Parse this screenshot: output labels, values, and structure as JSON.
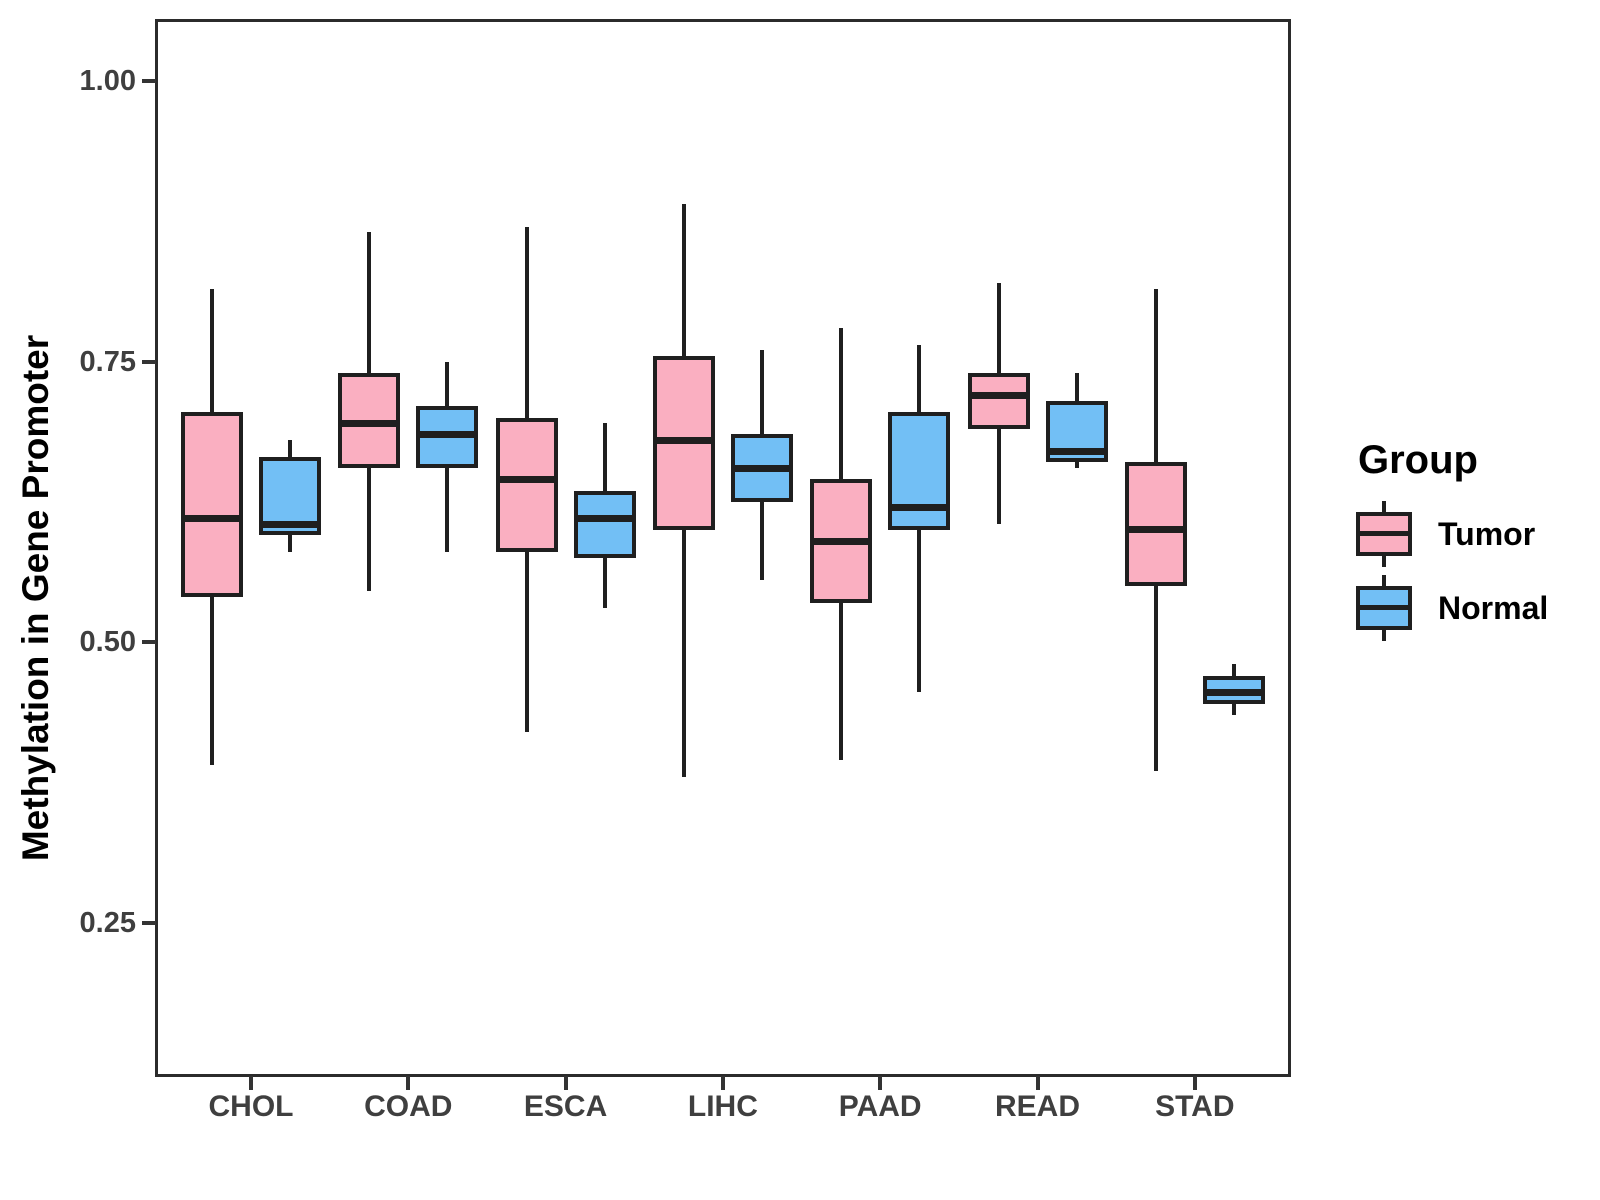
{
  "figure": {
    "background": "#ffffff"
  },
  "axes": {
    "y_title": "Methylation in Gene Promoter",
    "y_ticks": [
      {
        "value": 1.0,
        "label": "1.00"
      },
      {
        "value": 0.75,
        "label": "0.75"
      },
      {
        "value": 0.5,
        "label": "0.50"
      },
      {
        "value": 0.25,
        "label": "0.25"
      }
    ],
    "x_categories": [
      "CHOL",
      "COAD",
      "ESCA",
      "LIHC",
      "PAAD",
      "READ",
      "STAD"
    ]
  },
  "legend": {
    "title": "Group",
    "items": [
      {
        "label": "Tumor",
        "color": "#FAAFC1"
      },
      {
        "label": "Normal",
        "color": "#72BFF5"
      }
    ]
  },
  "chart_data": {
    "type": "boxplot",
    "title": "",
    "xlabel": "",
    "ylabel": "Methylation in Gene Promoter",
    "ylim": [
      0.113,
      1.054
    ],
    "yticks": [
      0.25,
      0.5,
      0.75,
      1.0
    ],
    "grid": false,
    "legend_position": "right",
    "categories": [
      "CHOL",
      "COAD",
      "ESCA",
      "LIHC",
      "PAAD",
      "READ",
      "STAD"
    ],
    "series": [
      {
        "name": "Tumor",
        "color": "#FAAFC1",
        "stroke": "#1f1f1f",
        "boxes": [
          {
            "category": "CHOL",
            "min": 0.39,
            "q1": 0.54,
            "median": 0.61,
            "q3": 0.705,
            "max": 0.815
          },
          {
            "category": "COAD",
            "min": 0.545,
            "q1": 0.655,
            "median": 0.695,
            "q3": 0.74,
            "max": 0.865
          },
          {
            "category": "ESCA",
            "min": 0.42,
            "q1": 0.58,
            "median": 0.645,
            "q3": 0.7,
            "max": 0.87
          },
          {
            "category": "LIHC",
            "min": 0.38,
            "q1": 0.6,
            "median": 0.68,
            "q3": 0.755,
            "max": 0.89
          },
          {
            "category": "PAAD",
            "min": 0.395,
            "q1": 0.535,
            "median": 0.59,
            "q3": 0.645,
            "max": 0.78
          },
          {
            "category": "READ",
            "min": 0.605,
            "q1": 0.69,
            "median": 0.72,
            "q3": 0.74,
            "max": 0.82
          },
          {
            "category": "STAD",
            "min": 0.385,
            "q1": 0.55,
            "median": 0.6,
            "q3": 0.66,
            "max": 0.815
          }
        ]
      },
      {
        "name": "Normal",
        "color": "#72BFF5",
        "stroke": "#1f1f1f",
        "boxes": [
          {
            "category": "CHOL",
            "min": 0.58,
            "q1": 0.595,
            "median": 0.605,
            "q3": 0.665,
            "max": 0.68
          },
          {
            "category": "COAD",
            "min": 0.58,
            "q1": 0.655,
            "median": 0.685,
            "q3": 0.71,
            "max": 0.75
          },
          {
            "category": "ESCA",
            "min": 0.53,
            "q1": 0.575,
            "median": 0.61,
            "q3": 0.635,
            "max": 0.695
          },
          {
            "category": "LIHC",
            "min": 0.555,
            "q1": 0.625,
            "median": 0.655,
            "q3": 0.685,
            "max": 0.76
          },
          {
            "category": "PAAD",
            "min": 0.455,
            "q1": 0.6,
            "median": 0.62,
            "q3": 0.705,
            "max": 0.765
          },
          {
            "category": "READ",
            "min": 0.655,
            "q1": 0.66,
            "median": 0.67,
            "q3": 0.715,
            "max": 0.74
          },
          {
            "category": "STAD",
            "min": 0.435,
            "q1": 0.445,
            "median": 0.455,
            "q3": 0.47,
            "max": 0.48
          }
        ]
      }
    ]
  }
}
